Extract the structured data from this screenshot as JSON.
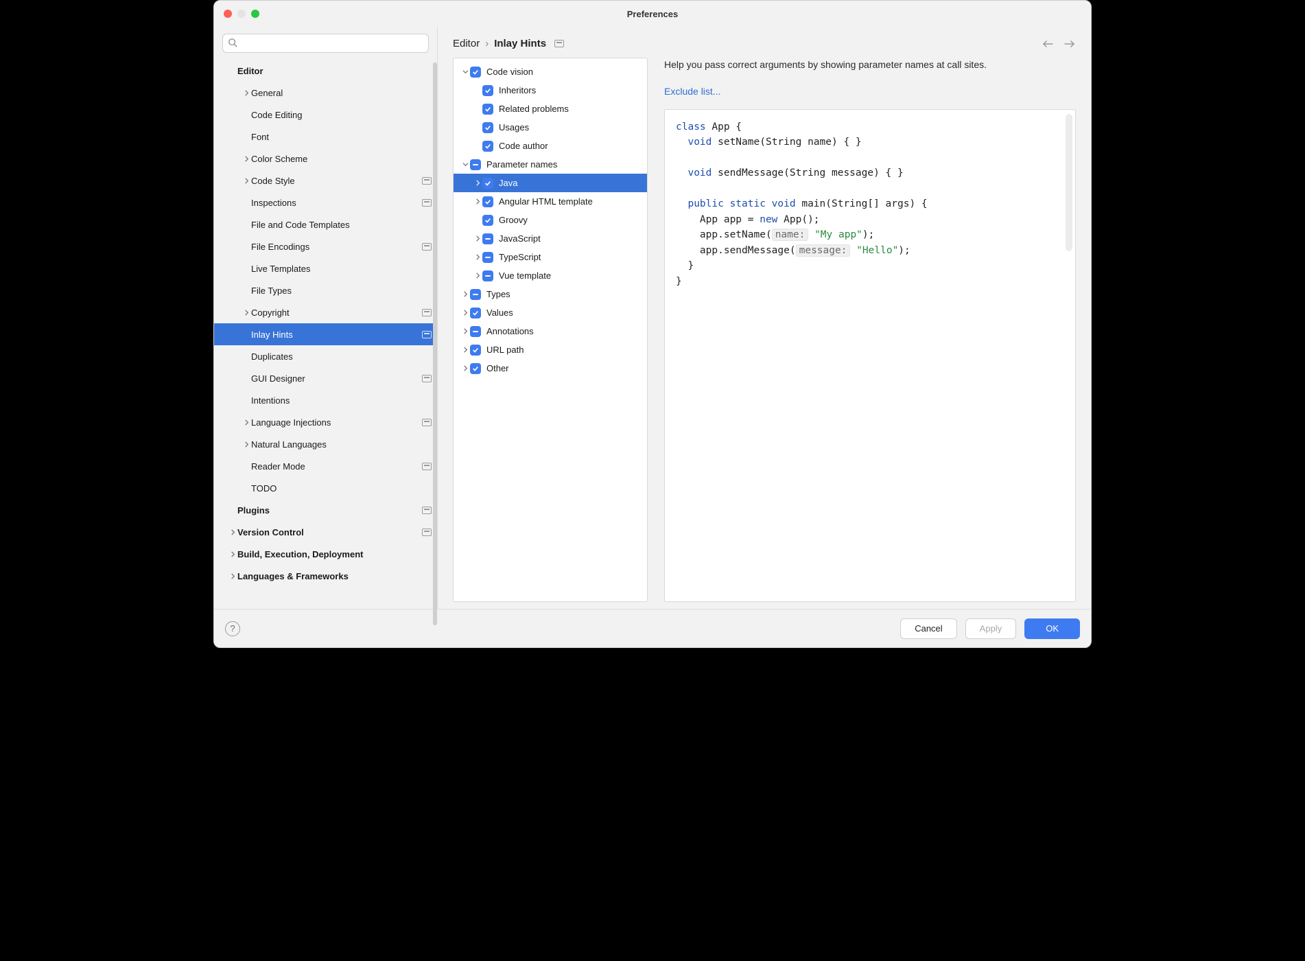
{
  "window": {
    "title": "Preferences"
  },
  "search": {
    "placeholder": ""
  },
  "sidebar": [
    {
      "label": "Editor",
      "indent": 0,
      "bold": true,
      "arrow": "none",
      "badge": false
    },
    {
      "label": "General",
      "indent": 1,
      "arrow": "right",
      "badge": false
    },
    {
      "label": "Code Editing",
      "indent": 1,
      "arrow": "none",
      "badge": false
    },
    {
      "label": "Font",
      "indent": 1,
      "arrow": "none",
      "badge": false
    },
    {
      "label": "Color Scheme",
      "indent": 1,
      "arrow": "right",
      "badge": false
    },
    {
      "label": "Code Style",
      "indent": 1,
      "arrow": "right",
      "badge": true
    },
    {
      "label": "Inspections",
      "indent": 1,
      "arrow": "none",
      "badge": true
    },
    {
      "label": "File and Code Templates",
      "indent": 1,
      "arrow": "none",
      "badge": false
    },
    {
      "label": "File Encodings",
      "indent": 1,
      "arrow": "none",
      "badge": true
    },
    {
      "label": "Live Templates",
      "indent": 1,
      "arrow": "none",
      "badge": false
    },
    {
      "label": "File Types",
      "indent": 1,
      "arrow": "none",
      "badge": false
    },
    {
      "label": "Copyright",
      "indent": 1,
      "arrow": "right",
      "badge": true
    },
    {
      "label": "Inlay Hints",
      "indent": 1,
      "arrow": "none",
      "badge": true,
      "selected": true
    },
    {
      "label": "Duplicates",
      "indent": 1,
      "arrow": "none",
      "badge": false
    },
    {
      "label": "GUI Designer",
      "indent": 1,
      "arrow": "none",
      "badge": true
    },
    {
      "label": "Intentions",
      "indent": 1,
      "arrow": "none",
      "badge": false
    },
    {
      "label": "Language Injections",
      "indent": 1,
      "arrow": "right",
      "badge": true
    },
    {
      "label": "Natural Languages",
      "indent": 1,
      "arrow": "right",
      "badge": false
    },
    {
      "label": "Reader Mode",
      "indent": 1,
      "arrow": "none",
      "badge": true
    },
    {
      "label": "TODO",
      "indent": 1,
      "arrow": "none",
      "badge": false
    },
    {
      "label": "Plugins",
      "indent": 0,
      "bold": true,
      "arrow": "none",
      "badge": true
    },
    {
      "label": "Version Control",
      "indent": 0,
      "bold": true,
      "arrow": "right",
      "badge": true
    },
    {
      "label": "Build, Execution, Deployment",
      "indent": 0,
      "bold": true,
      "arrow": "right",
      "badge": false
    },
    {
      "label": "Languages & Frameworks",
      "indent": 0,
      "bold": true,
      "arrow": "right",
      "badge": false
    }
  ],
  "breadcrumb": {
    "root": "Editor",
    "current": "Inlay Hints"
  },
  "options": [
    {
      "label": "Code vision",
      "indent": 0,
      "arrow": "down",
      "cb": "check"
    },
    {
      "label": "Inheritors",
      "indent": 1,
      "arrow": "none",
      "cb": "check"
    },
    {
      "label": "Related problems",
      "indent": 1,
      "arrow": "none",
      "cb": "check"
    },
    {
      "label": "Usages",
      "indent": 1,
      "arrow": "none",
      "cb": "check"
    },
    {
      "label": "Code author",
      "indent": 1,
      "arrow": "none",
      "cb": "check"
    },
    {
      "label": "Parameter names",
      "indent": 0,
      "arrow": "down",
      "cb": "mixed"
    },
    {
      "label": "Java",
      "indent": 1,
      "arrow": "right",
      "cb": "check",
      "selected": true
    },
    {
      "label": "Angular HTML template",
      "indent": 1,
      "arrow": "right",
      "cb": "check"
    },
    {
      "label": "Groovy",
      "indent": 1,
      "arrow": "none",
      "cb": "check"
    },
    {
      "label": "JavaScript",
      "indent": 1,
      "arrow": "right",
      "cb": "mixed"
    },
    {
      "label": "TypeScript",
      "indent": 1,
      "arrow": "right",
      "cb": "mixed"
    },
    {
      "label": "Vue template",
      "indent": 1,
      "arrow": "right",
      "cb": "mixed"
    },
    {
      "label": "Types",
      "indent": 0,
      "arrow": "right",
      "cb": "mixed"
    },
    {
      "label": "Values",
      "indent": 0,
      "arrow": "right",
      "cb": "check"
    },
    {
      "label": "Annotations",
      "indent": 0,
      "arrow": "right",
      "cb": "mixed"
    },
    {
      "label": "URL path",
      "indent": 0,
      "arrow": "right",
      "cb": "check"
    },
    {
      "label": "Other",
      "indent": 0,
      "arrow": "right",
      "cb": "check"
    }
  ],
  "detail": {
    "description": "Help you pass correct arguments by showing parameter names at call sites.",
    "link": "Exclude list...",
    "code": {
      "l1a": "class",
      "l1b": " App {",
      "l2a": "  void",
      "l2b": " setName(String name) { }",
      "l3": "",
      "l4a": "  void",
      "l4b": " sendMessage(String message) { }",
      "l5": "",
      "l6a": "  public static void",
      "l6b": " main(String[] args) {",
      "l7a": "    App app = ",
      "l7b": "new",
      "l7c": " App();",
      "l8a": "    app.setName(",
      "l8hint": "name:",
      "l8b": " ",
      "l8str": "\"My app\"",
      "l8c": ");",
      "l9a": "    app.sendMessage(",
      "l9hint": "message:",
      "l9b": " ",
      "l9str": "\"Hello\"",
      "l9c": ");",
      "l10": "  }",
      "l11": "}"
    }
  },
  "footer": {
    "cancel": "Cancel",
    "apply": "Apply",
    "ok": "OK"
  },
  "colors": {
    "selection": "#3874d8",
    "checkbox": "#3e7bf0",
    "link": "#2f6fd0",
    "keyword": "#1e4fae",
    "string": "#2b8a3e",
    "hint_bg": "#efefef"
  }
}
